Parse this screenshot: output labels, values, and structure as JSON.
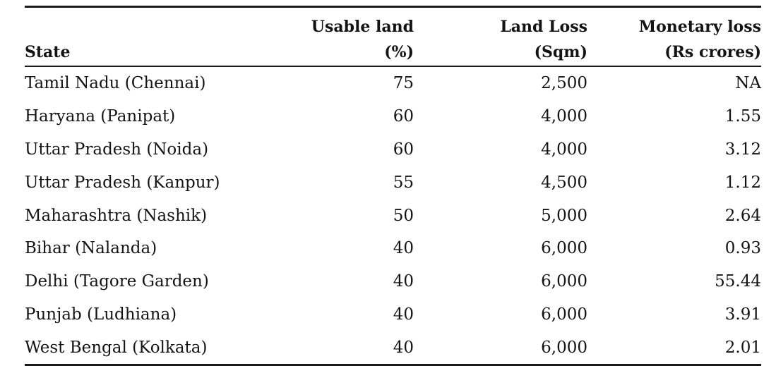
{
  "table": {
    "headers": {
      "state": "State",
      "usable_top": "Usable land",
      "usable_bottom": "(%)",
      "loss_top": "Land Loss",
      "loss_bottom": "(Sqm)",
      "money_top": "Monetary loss",
      "money_bottom": "(Rs crores)"
    },
    "rows": [
      {
        "state": "Tamil Nadu (Chennai)",
        "usable": "75",
        "loss": "2,500",
        "money": "NA"
      },
      {
        "state": "Haryana (Panipat)",
        "usable": "60",
        "loss": "4,000",
        "money": "1.55"
      },
      {
        "state": "Uttar Pradesh (Noida)",
        "usable": "60",
        "loss": "4,000",
        "money": "3.12"
      },
      {
        "state": "Uttar Pradesh (Kanpur)",
        "usable": "55",
        "loss": "4,500",
        "money": "1.12"
      },
      {
        "state": "Maharashtra (Nashik)",
        "usable": "50",
        "loss": "5,000",
        "money": "2.64"
      },
      {
        "state": "Bihar (Nalanda)",
        "usable": "40",
        "loss": "6,000",
        "money": "0.93"
      },
      {
        "state": "Delhi (Tagore Garden)",
        "usable": "40",
        "loss": "6,000",
        "money": "55.44"
      },
      {
        "state": "Punjab (Ludhiana)",
        "usable": "40",
        "loss": "6,000",
        "money": "3.91"
      },
      {
        "state": "West Bengal (Kolkata)",
        "usable": "40",
        "loss": "6,000",
        "money": "2.01"
      }
    ]
  }
}
